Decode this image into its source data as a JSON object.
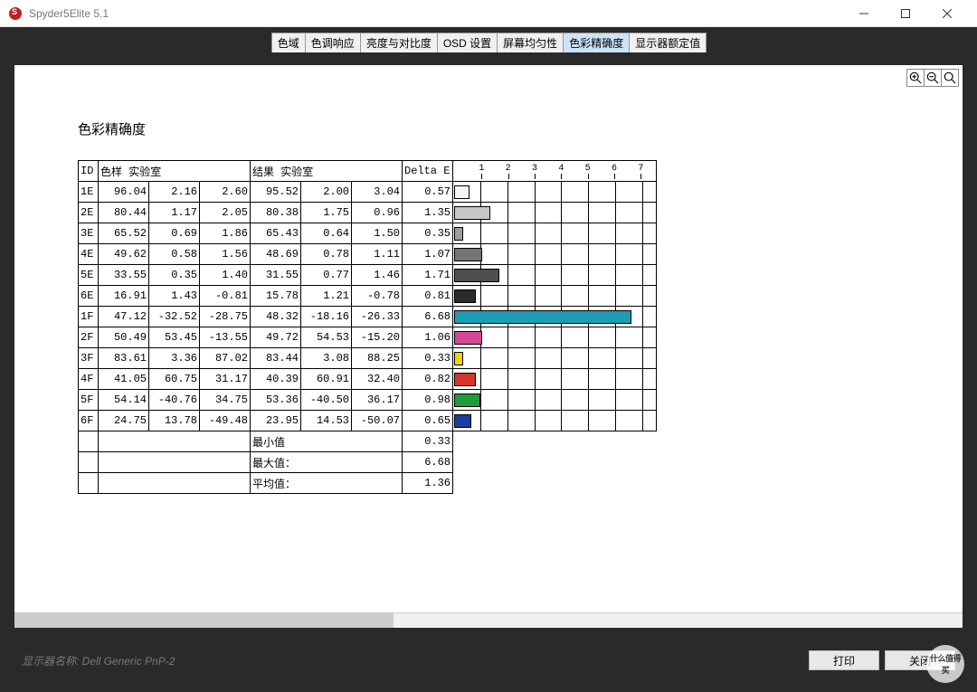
{
  "window": {
    "title": "Spyder5Elite 5.1"
  },
  "tabs": [
    {
      "label": "色域",
      "active": false
    },
    {
      "label": "色调响应",
      "active": false
    },
    {
      "label": "亮度与对比度",
      "active": false
    },
    {
      "label": "OSD 设置",
      "active": false
    },
    {
      "label": "屏幕均匀性",
      "active": false
    },
    {
      "label": "色彩精确度",
      "active": true
    },
    {
      "label": "显示器额定值",
      "active": false
    }
  ],
  "report": {
    "title": "色彩精确度",
    "headers": {
      "id": "ID",
      "sample": "色样 实验室",
      "result": "结果 实验室",
      "delta": "Delta E"
    },
    "chart_scale": {
      "ticks": [
        1,
        2,
        3,
        4,
        5,
        6,
        7
      ],
      "max": 7.5
    },
    "rows": [
      {
        "id": "1E",
        "s1": 96.04,
        "s2": 2.16,
        "s3": 2.6,
        "r1": 95.52,
        "r2": 2.0,
        "r3": 3.04,
        "delta": 0.57,
        "color": "#f6f6f6"
      },
      {
        "id": "2E",
        "s1": 80.44,
        "s2": 1.17,
        "s3": 2.05,
        "r1": 80.38,
        "r2": 1.75,
        "r3": 0.96,
        "delta": 1.35,
        "color": "#c7c7c7"
      },
      {
        "id": "3E",
        "s1": 65.52,
        "s2": 0.69,
        "s3": 1.86,
        "r1": 65.43,
        "r2": 0.64,
        "r3": 1.5,
        "delta": 0.35,
        "color": "#9e9e9e"
      },
      {
        "id": "4E",
        "s1": 49.62,
        "s2": 0.58,
        "s3": 1.56,
        "r1": 48.69,
        "r2": 0.78,
        "r3": 1.11,
        "delta": 1.07,
        "color": "#747474"
      },
      {
        "id": "5E",
        "s1": 33.55,
        "s2": 0.35,
        "s3": 1.4,
        "r1": 31.55,
        "r2": 0.77,
        "r3": 1.46,
        "delta": 1.71,
        "color": "#4f4f4f"
      },
      {
        "id": "6E",
        "s1": 16.91,
        "s2": 1.43,
        "s3": -0.81,
        "r1": 15.78,
        "r2": 1.21,
        "r3": -0.78,
        "delta": 0.81,
        "color": "#2a2a2a"
      },
      {
        "id": "1F",
        "s1": 47.12,
        "s2": -32.52,
        "s3": -28.75,
        "r1": 48.32,
        "r2": -18.16,
        "r3": -26.33,
        "delta": 6.68,
        "color": "#1e9cb6"
      },
      {
        "id": "2F",
        "s1": 50.49,
        "s2": 53.45,
        "s3": -13.55,
        "r1": 49.72,
        "r2": 54.53,
        "r3": -15.2,
        "delta": 1.06,
        "color": "#d64896"
      },
      {
        "id": "3F",
        "s1": 83.61,
        "s2": 3.36,
        "s3": 87.02,
        "r1": 83.44,
        "r2": 3.08,
        "r3": 88.25,
        "delta": 0.33,
        "color": "#f2d500"
      },
      {
        "id": "4F",
        "s1": 41.05,
        "s2": 60.75,
        "s3": 31.17,
        "r1": 40.39,
        "r2": 60.91,
        "r3": 32.4,
        "delta": 0.82,
        "color": "#d6342a"
      },
      {
        "id": "5F",
        "s1": 54.14,
        "s2": -40.76,
        "s3": 34.75,
        "r1": 53.36,
        "r2": -40.5,
        "r3": 36.17,
        "delta": 0.98,
        "color": "#1f9b3e"
      },
      {
        "id": "6F",
        "s1": 24.75,
        "s2": 13.78,
        "s3": -49.48,
        "r1": 23.95,
        "r2": 14.53,
        "r3": -50.07,
        "delta": 0.65,
        "color": "#1e3aa3"
      }
    ],
    "summary": {
      "min_label": "最小值",
      "min": 0.33,
      "max_label": "最大值：",
      "max": 6.68,
      "avg_label": "平均值：",
      "avg": 1.36
    }
  },
  "footer": {
    "monitor_label_prefix": "显示器名称: ",
    "monitor_name": "Dell Generic PnP-2",
    "print_btn": "打印",
    "close_btn": "关闭"
  },
  "watermark_text": "什么值得买",
  "col_widths": {
    "id": 22,
    "n": 56,
    "delta": 56,
    "chart": 225
  }
}
